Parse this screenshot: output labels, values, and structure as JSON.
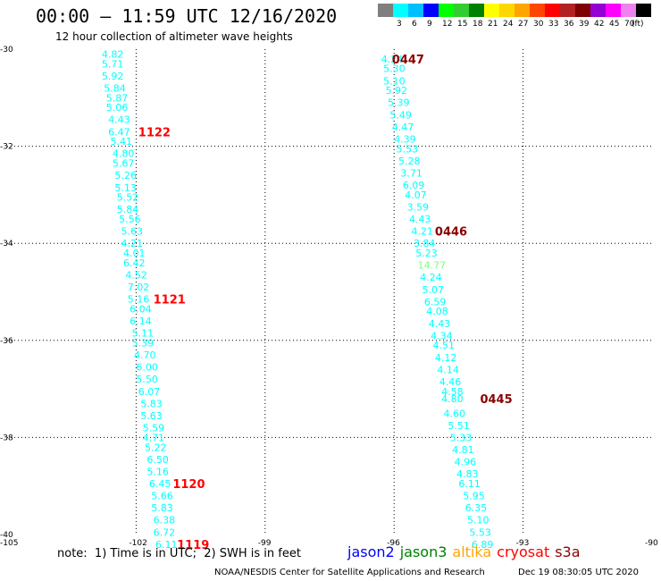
{
  "title": "00:00 – 11:59 UTC 12/16/2020",
  "subtitle": "12 hour collection of altimeter wave heights",
  "legend": {
    "unit": "(ft)",
    "bins": [
      {
        "label": "",
        "color": "#7f7f7f"
      },
      {
        "label": "3",
        "color": "#00ffff"
      },
      {
        "label": "6",
        "color": "#00bfff"
      },
      {
        "label": "9",
        "color": "#0000ff"
      },
      {
        "label": "12",
        "color": "#00ff00"
      },
      {
        "label": "15",
        "color": "#32cd32"
      },
      {
        "label": "18",
        "color": "#008000"
      },
      {
        "label": "21",
        "color": "#ffff00"
      },
      {
        "label": "24",
        "color": "#ffd700"
      },
      {
        "label": "27",
        "color": "#ffa500"
      },
      {
        "label": "30",
        "color": "#ff4500"
      },
      {
        "label": "33",
        "color": "#ff0000"
      },
      {
        "label": "36",
        "color": "#b22222"
      },
      {
        "label": "39",
        "color": "#800000"
      },
      {
        "label": "42",
        "color": "#9400d3"
      },
      {
        "label": "45",
        "color": "#ff00ff"
      },
      {
        "label": "70",
        "color": "#ee82ee"
      },
      {
        "label": "",
        "color": "#000000"
      }
    ]
  },
  "map": {
    "lon_range": [
      -105,
      -90
    ],
    "lat_range": [
      -40,
      -30
    ],
    "lon_ticks": [
      -105,
      -102,
      -99,
      -96,
      -93,
      -90
    ],
    "lat_ticks": [
      -30,
      -32,
      -34,
      -36,
      -38,
      -40
    ],
    "gridlines": true
  },
  "tracks": [
    {
      "color": "#00ffff",
      "points": [
        {
          "lon": -102.8,
          "lat": -30.1,
          "v": "4.82"
        },
        {
          "lon": -102.8,
          "lat": -30.3,
          "v": "5.71"
        },
        {
          "lon": -102.8,
          "lat": -30.55,
          "v": "5.92"
        },
        {
          "lon": -102.75,
          "lat": -30.8,
          "v": "5.84"
        },
        {
          "lon": -102.7,
          "lat": -31.0,
          "v": "5.87"
        },
        {
          "lon": -102.7,
          "lat": -31.2,
          "v": "5.06"
        },
        {
          "lon": -102.65,
          "lat": -31.45,
          "v": "4.43"
        },
        {
          "lon": -102.65,
          "lat": -31.7,
          "v": "6.47"
        },
        {
          "lon": -102.6,
          "lat": -31.9,
          "v": "5.41"
        },
        {
          "lon": -102.55,
          "lat": -32.15,
          "v": "4.80"
        },
        {
          "lon": -102.55,
          "lat": -32.35,
          "v": "5.67"
        },
        {
          "lon": -102.5,
          "lat": -32.6,
          "v": "5.26"
        },
        {
          "lon": -102.5,
          "lat": -32.85,
          "v": "5.13"
        },
        {
          "lon": -102.45,
          "lat": -33.05,
          "v": "5.52"
        },
        {
          "lon": -102.45,
          "lat": -33.3,
          "v": "5.84"
        },
        {
          "lon": -102.4,
          "lat": -33.5,
          "v": "5.56"
        },
        {
          "lon": -102.35,
          "lat": -33.75,
          "v": "5.63"
        },
        {
          "lon": -102.35,
          "lat": -34.0,
          "v": "4.21"
        },
        {
          "lon": -102.3,
          "lat": -34.2,
          "v": "4.01"
        },
        {
          "lon": -102.3,
          "lat": -34.4,
          "v": "6.42"
        },
        {
          "lon": -102.25,
          "lat": -34.65,
          "v": "4.52"
        },
        {
          "lon": -102.2,
          "lat": -34.9,
          "v": "7.02"
        },
        {
          "lon": -102.2,
          "lat": -35.15,
          "v": "5.16"
        },
        {
          "lon": -102.15,
          "lat": -35.35,
          "v": "6.04"
        },
        {
          "lon": -102.15,
          "lat": -35.6,
          "v": "6.14"
        },
        {
          "lon": -102.1,
          "lat": -35.85,
          "v": "5.11"
        },
        {
          "lon": -102.1,
          "lat": -36.05,
          "v": "5.39"
        },
        {
          "lon": -102.05,
          "lat": -36.3,
          "v": "4.70"
        },
        {
          "lon": -102.0,
          "lat": -36.55,
          "v": "6.00"
        },
        {
          "lon": -102.0,
          "lat": -36.8,
          "v": "5.50"
        },
        {
          "lon": -101.95,
          "lat": -37.05,
          "v": "6.07"
        },
        {
          "lon": -101.9,
          "lat": -37.3,
          "v": "5.83"
        },
        {
          "lon": -101.9,
          "lat": -37.55,
          "v": "5.63"
        },
        {
          "lon": -101.85,
          "lat": -37.8,
          "v": "5.59"
        },
        {
          "lon": -101.85,
          "lat": -38.0,
          "v": "4.71"
        },
        {
          "lon": -101.8,
          "lat": -38.2,
          "v": "5.22"
        },
        {
          "lon": -101.75,
          "lat": -38.45,
          "v": "6.50"
        },
        {
          "lon": -101.75,
          "lat": -38.7,
          "v": "5.16"
        },
        {
          "lon": -101.7,
          "lat": -38.95,
          "v": "6.45"
        },
        {
          "lon": -101.65,
          "lat": -39.2,
          "v": "5.66"
        },
        {
          "lon": -101.65,
          "lat": -39.45,
          "v": "5.83"
        },
        {
          "lon": -101.6,
          "lat": -39.7,
          "v": "6.38"
        },
        {
          "lon": -101.6,
          "lat": -39.95,
          "v": "6.72"
        },
        {
          "lon": -101.55,
          "lat": -40.2,
          "v": "6.11"
        }
      ]
    },
    {
      "color": "#00ffff",
      "points": [
        {
          "lon": -96.3,
          "lat": -30.2,
          "v": "4.24"
        },
        {
          "lon": -96.25,
          "lat": -30.4,
          "v": "5.30"
        },
        {
          "lon": -96.25,
          "lat": -30.65,
          "v": "5.10"
        },
        {
          "lon": -96.2,
          "lat": -30.85,
          "v": "5.92"
        },
        {
          "lon": -96.15,
          "lat": -31.1,
          "v": "5.39"
        },
        {
          "lon": -96.1,
          "lat": -31.35,
          "v": "5.49"
        },
        {
          "lon": -96.05,
          "lat": -31.6,
          "v": "4.47"
        },
        {
          "lon": -96.0,
          "lat": -31.85,
          "v": "4.39"
        },
        {
          "lon": -95.95,
          "lat": -32.05,
          "v": "5.53"
        },
        {
          "lon": -95.9,
          "lat": -32.3,
          "v": "5.28"
        },
        {
          "lon": -95.85,
          "lat": -32.55,
          "v": "3.71"
        },
        {
          "lon": -95.8,
          "lat": -32.8,
          "v": "6.09"
        },
        {
          "lon": -95.75,
          "lat": -33.0,
          "v": "4.07"
        },
        {
          "lon": -95.7,
          "lat": -33.25,
          "v": "3.59"
        },
        {
          "lon": -95.65,
          "lat": -33.5,
          "v": "4.43"
        },
        {
          "lon": -95.6,
          "lat": -33.75,
          "v": "4.21"
        },
        {
          "lon": -95.55,
          "lat": -34.0,
          "v": "3.84"
        },
        {
          "lon": -95.5,
          "lat": -34.2,
          "v": "5.23"
        },
        {
          "lon": -95.45,
          "lat": -34.45,
          "v": "14.77",
          "color": "#7fff7f"
        },
        {
          "lon": -95.4,
          "lat": -34.7,
          "v": "4.24"
        },
        {
          "lon": -95.35,
          "lat": -34.95,
          "v": "5.07"
        },
        {
          "lon": -95.3,
          "lat": -35.2,
          "v": "6.59"
        },
        {
          "lon": -95.25,
          "lat": -35.4,
          "v": "4.08"
        },
        {
          "lon": -95.2,
          "lat": -35.65,
          "v": "4.43"
        },
        {
          "lon": -95.15,
          "lat": -35.9,
          "v": "4.34"
        },
        {
          "lon": -95.1,
          "lat": -36.1,
          "v": "4.51"
        },
        {
          "lon": -95.05,
          "lat": -36.35,
          "v": "4.12"
        },
        {
          "lon": -95.0,
          "lat": -36.6,
          "v": "4.14"
        },
        {
          "lon": -94.95,
          "lat": -36.85,
          "v": "4.46"
        },
        {
          "lon": -94.9,
          "lat": -37.05,
          "v": "4.58"
        },
        {
          "lon": -94.9,
          "lat": -37.2,
          "v": "4.80"
        },
        {
          "lon": -94.85,
          "lat": -37.5,
          "v": "4.60"
        },
        {
          "lon": -94.75,
          "lat": -37.75,
          "v": "5.51"
        },
        {
          "lon": -94.7,
          "lat": -38.0,
          "v": "5.33"
        },
        {
          "lon": -94.65,
          "lat": -38.25,
          "v": "4.81"
        },
        {
          "lon": -94.6,
          "lat": -38.5,
          "v": "4.96"
        },
        {
          "lon": -94.55,
          "lat": -38.75,
          "v": "4.83"
        },
        {
          "lon": -94.5,
          "lat": -38.95,
          "v": "6.11"
        },
        {
          "lon": -94.4,
          "lat": -39.2,
          "v": "5.95"
        },
        {
          "lon": -94.35,
          "lat": -39.45,
          "v": "6.35"
        },
        {
          "lon": -94.3,
          "lat": -39.7,
          "v": "5.10"
        },
        {
          "lon": -94.25,
          "lat": -39.95,
          "v": "5.53"
        },
        {
          "lon": -94.2,
          "lat": -40.2,
          "v": "6.89"
        }
      ]
    }
  ],
  "pass_labels": [
    {
      "text": "1122",
      "lon": -101.95,
      "lat": -31.7,
      "color": "#ff0000"
    },
    {
      "text": "1121",
      "lon": -101.6,
      "lat": -35.15,
      "color": "#ff0000"
    },
    {
      "text": "1120",
      "lon": -101.15,
      "lat": -38.95,
      "color": "#ff0000"
    },
    {
      "text": "1119",
      "lon": -101.05,
      "lat": -40.2,
      "color": "#ff0000"
    },
    {
      "text": "0447",
      "lon": -96.05,
      "lat": -30.2,
      "color": "#8b0000"
    },
    {
      "text": "0446",
      "lon": -95.05,
      "lat": -33.75,
      "color": "#8b0000"
    },
    {
      "text": "0445",
      "lon": -94.0,
      "lat": -37.2,
      "color": "#8b0000"
    }
  ],
  "note": "note:  1) Time is in UTC;  2) SWH is in feet",
  "missions": [
    {
      "name": "jason2",
      "color": "#0000ff"
    },
    {
      "name": "jason3",
      "color": "#008000"
    },
    {
      "name": "altika",
      "color": "#ffa500"
    },
    {
      "name": "cryosat",
      "color": "#ff0000"
    },
    {
      "name": "s3a",
      "color": "#8b0000"
    }
  ],
  "footer": {
    "credit": "NOAA/NESDIS Center for Satellite Applications and Research",
    "timestamp": "Dec 19 08:30:05 UTC 2020"
  }
}
